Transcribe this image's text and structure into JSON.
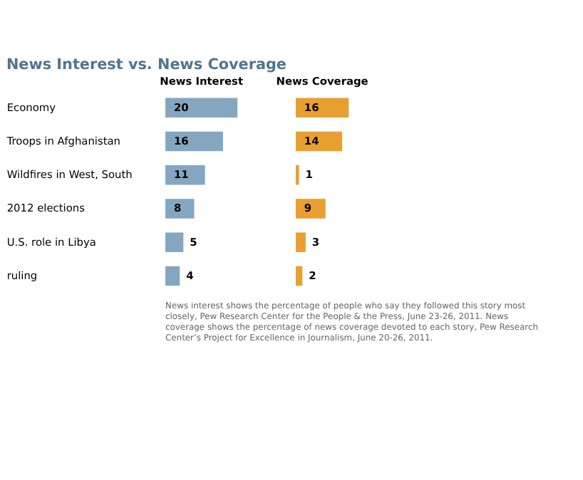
{
  "chart_data": [
    {
      "type": "bar",
      "orientation": "horizontal",
      "title": "News Interest vs. News Coverage",
      "subtitle": "News Interest",
      "categories": [
        "Economy",
        "Troops in Afghanistan",
        "Wildfires in West, South",
        "2012 elections",
        "U.S. role in Libya",
        "ruling"
      ],
      "values": [
        20,
        16,
        11,
        8,
        5,
        4
      ],
      "color": "#85a6c0",
      "data_labels": true
    },
    {
      "type": "bar",
      "orientation": "horizontal",
      "subtitle": "News Coverage",
      "categories": [
        null,
        null,
        null,
        null,
        null,
        null
      ],
      "values": [
        16,
        14,
        1,
        9,
        3,
        2
      ],
      "color": "#e99f31",
      "data_labels": true,
      "annotations": [
        "News interest shows the percentage of people who say they followed this story most closely, Pew Research Center for the People & the Press, June 23-26, 2011. News coverage shows the percentage of news coverage devoted to each story, Pew Research Center’s Project for Excellence in Journalism, June 20-26, 2011."
      ]
    }
  ]
}
